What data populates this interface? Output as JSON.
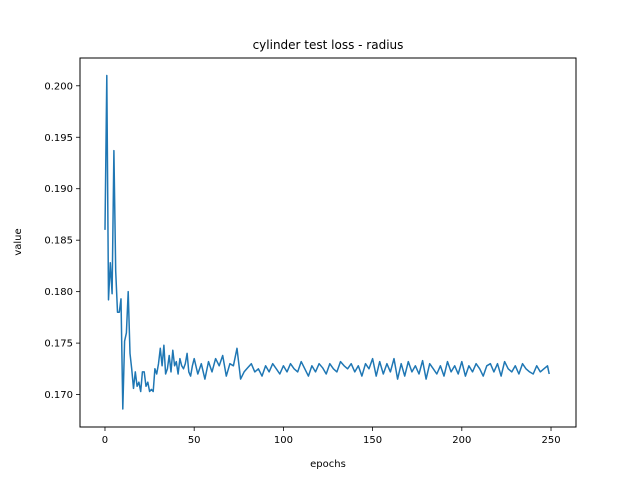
{
  "chart_data": {
    "type": "line",
    "title": "cylinder test loss - radius",
    "xlabel": "epochs",
    "ylabel": "value",
    "xlim": [
      -14,
      264
    ],
    "ylim": [
      0.16685,
      0.2027
    ],
    "xticks": [
      0,
      50,
      100,
      150,
      200,
      250
    ],
    "yticks": [
      0.17,
      0.175,
      0.18,
      0.185,
      0.19,
      0.195,
      0.2
    ],
    "xtick_labels": [
      "0",
      "50",
      "100",
      "150",
      "200",
      "250"
    ],
    "ytick_labels": [
      "0.170",
      "0.175",
      "0.180",
      "0.185",
      "0.190",
      "0.195",
      "0.200"
    ],
    "grid": false,
    "legend": "none",
    "series": [
      {
        "color": "#1f77b4",
        "x": [
          0,
          1,
          2,
          3,
          4,
          5,
          6,
          7,
          8,
          9,
          10,
          11,
          12,
          13,
          14,
          15,
          16,
          17,
          18,
          19,
          20,
          21,
          22,
          23,
          24,
          25,
          26,
          27,
          28,
          29,
          30,
          31,
          32,
          33,
          34,
          35,
          36,
          37,
          38,
          39,
          40,
          41,
          42,
          43,
          44,
          45,
          46,
          47,
          48,
          49,
          50,
          52,
          54,
          56,
          58,
          60,
          62,
          64,
          66,
          68,
          70,
          72,
          74,
          76,
          78,
          80,
          82,
          84,
          86,
          88,
          90,
          92,
          94,
          96,
          98,
          100,
          102,
          104,
          106,
          108,
          110,
          112,
          114,
          116,
          118,
          120,
          122,
          124,
          126,
          128,
          130,
          132,
          134,
          136,
          138,
          140,
          142,
          144,
          146,
          148,
          150,
          152,
          154,
          156,
          158,
          160,
          162,
          164,
          166,
          168,
          170,
          172,
          174,
          176,
          178,
          180,
          182,
          184,
          186,
          188,
          190,
          192,
          194,
          196,
          198,
          200,
          202,
          204,
          206,
          208,
          210,
          212,
          214,
          216,
          218,
          220,
          222,
          224,
          226,
          228,
          230,
          232,
          234,
          236,
          238,
          240,
          242,
          244,
          246,
          248,
          249
        ],
        "y": [
          0.186,
          0.201,
          0.1792,
          0.1828,
          0.1798,
          0.1937,
          0.182,
          0.178,
          0.178,
          0.1793,
          0.1686,
          0.1752,
          0.176,
          0.18,
          0.174,
          0.1725,
          0.1706,
          0.1722,
          0.1708,
          0.1712,
          0.1703,
          0.1722,
          0.1722,
          0.1708,
          0.1712,
          0.1703,
          0.1705,
          0.1703,
          0.1725,
          0.172,
          0.173,
          0.1745,
          0.1728,
          0.1748,
          0.172,
          0.1725,
          0.1738,
          0.1722,
          0.1743,
          0.1728,
          0.1732,
          0.172,
          0.1735,
          0.1728,
          0.1725,
          0.173,
          0.174,
          0.1722,
          0.1718,
          0.1728,
          0.1735,
          0.172,
          0.173,
          0.1715,
          0.1732,
          0.1722,
          0.1735,
          0.1728,
          0.1738,
          0.1718,
          0.173,
          0.1728,
          0.1745,
          0.1715,
          0.1722,
          0.1726,
          0.173,
          0.1722,
          0.1725,
          0.1718,
          0.1728,
          0.1722,
          0.173,
          0.1725,
          0.172,
          0.1728,
          0.1722,
          0.173,
          0.1725,
          0.1722,
          0.1732,
          0.1725,
          0.1718,
          0.1728,
          0.1722,
          0.173,
          0.1726,
          0.172,
          0.173,
          0.1725,
          0.1722,
          0.1732,
          0.1728,
          0.1725,
          0.173,
          0.1722,
          0.1728,
          0.1718,
          0.173,
          0.1725,
          0.1735,
          0.1718,
          0.1732,
          0.172,
          0.173,
          0.1722,
          0.1735,
          0.1715,
          0.173,
          0.1718,
          0.1732,
          0.1722,
          0.1728,
          0.172,
          0.1733,
          0.1715,
          0.173,
          0.1725,
          0.172,
          0.1728,
          0.1718,
          0.1732,
          0.1722,
          0.1728,
          0.172,
          0.1732,
          0.1718,
          0.1728,
          0.1722,
          0.173,
          0.1725,
          0.1718,
          0.1728,
          0.173,
          0.1722,
          0.173,
          0.1718,
          0.1732,
          0.1725,
          0.1722,
          0.1728,
          0.172,
          0.173,
          0.1725,
          0.1722,
          0.172,
          0.1728,
          0.1722,
          0.1725,
          0.1728,
          0.172
        ]
      }
    ]
  }
}
